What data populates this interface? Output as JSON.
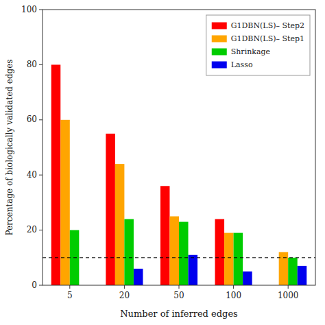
{
  "chart_data": {
    "type": "bar",
    "categories": [
      "5",
      "20",
      "50",
      "100",
      "1000"
    ],
    "series": [
      {
        "name": "G1DBN(LS)– Step2",
        "color": "#FF0000",
        "values": [
          80,
          55,
          36,
          24,
          0
        ]
      },
      {
        "name": "G1DBN(LS)– Step1",
        "color": "#FFA500",
        "values": [
          60,
          44,
          25,
          19,
          12
        ]
      },
      {
        "name": "Shrinkage",
        "color": "#00CC00",
        "values": [
          20,
          24,
          23,
          19,
          10
        ]
      },
      {
        "name": "Lasso",
        "color": "#0000EE",
        "values": [
          0,
          6,
          11,
          5,
          7
        ]
      }
    ],
    "annotations": [
      {
        "type": "hline",
        "y": 10,
        "line_style": "dashed",
        "color": "black"
      }
    ],
    "x_label": "Number of inferred edges",
    "y_label": "Percentage of biologically validated edges",
    "ylim": [
      0,
      100
    ],
    "yticks": [
      0,
      20,
      40,
      60,
      80,
      100
    ],
    "legend": "upper right",
    "grid": false
  }
}
